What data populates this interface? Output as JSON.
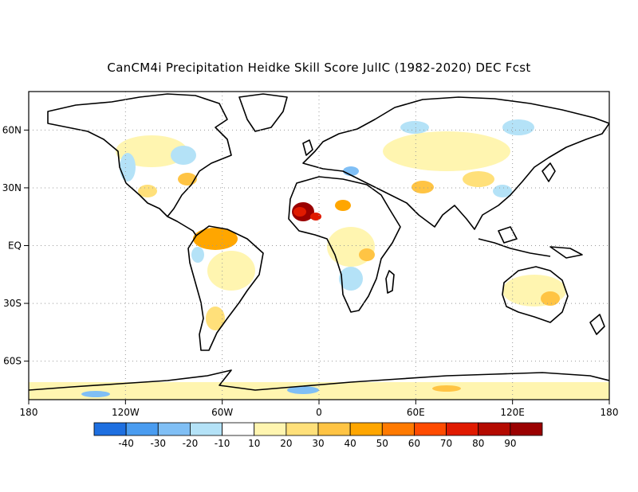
{
  "title": "CanCM4i Precipitation Heidke Skill Score JulIC (1982-2020) DEC Fcst",
  "map": {
    "lon_ticks": [
      "180",
      "120W",
      "60W",
      "0",
      "60E",
      "120E",
      "180"
    ],
    "lat_ticks": [
      "60N",
      "30N",
      "EQ",
      "30S",
      "60S"
    ],
    "lon_values": [
      -180,
      -120,
      -60,
      0,
      60,
      120,
      180
    ],
    "lat_values": [
      60,
      30,
      0,
      -30,
      -60
    ],
    "lon_range": [
      -180,
      180
    ],
    "lat_range": [
      -80,
      80
    ],
    "grid": "dotted"
  },
  "colorbar": {
    "labels": [
      "-40",
      "-30",
      "-20",
      "-10",
      "10",
      "20",
      "30",
      "40",
      "50",
      "60",
      "70",
      "80",
      "90"
    ],
    "colors": [
      "#1e6fe0",
      "#4a9cf0",
      "#80bff5",
      "#b4e2f7",
      "#ffffff",
      "#fff5b0",
      "#ffe07a",
      "#ffc444",
      "#ffa600",
      "#ff7a00",
      "#ff4b00",
      "#e01a00",
      "#b40a00",
      "#9a0000"
    ]
  }
}
